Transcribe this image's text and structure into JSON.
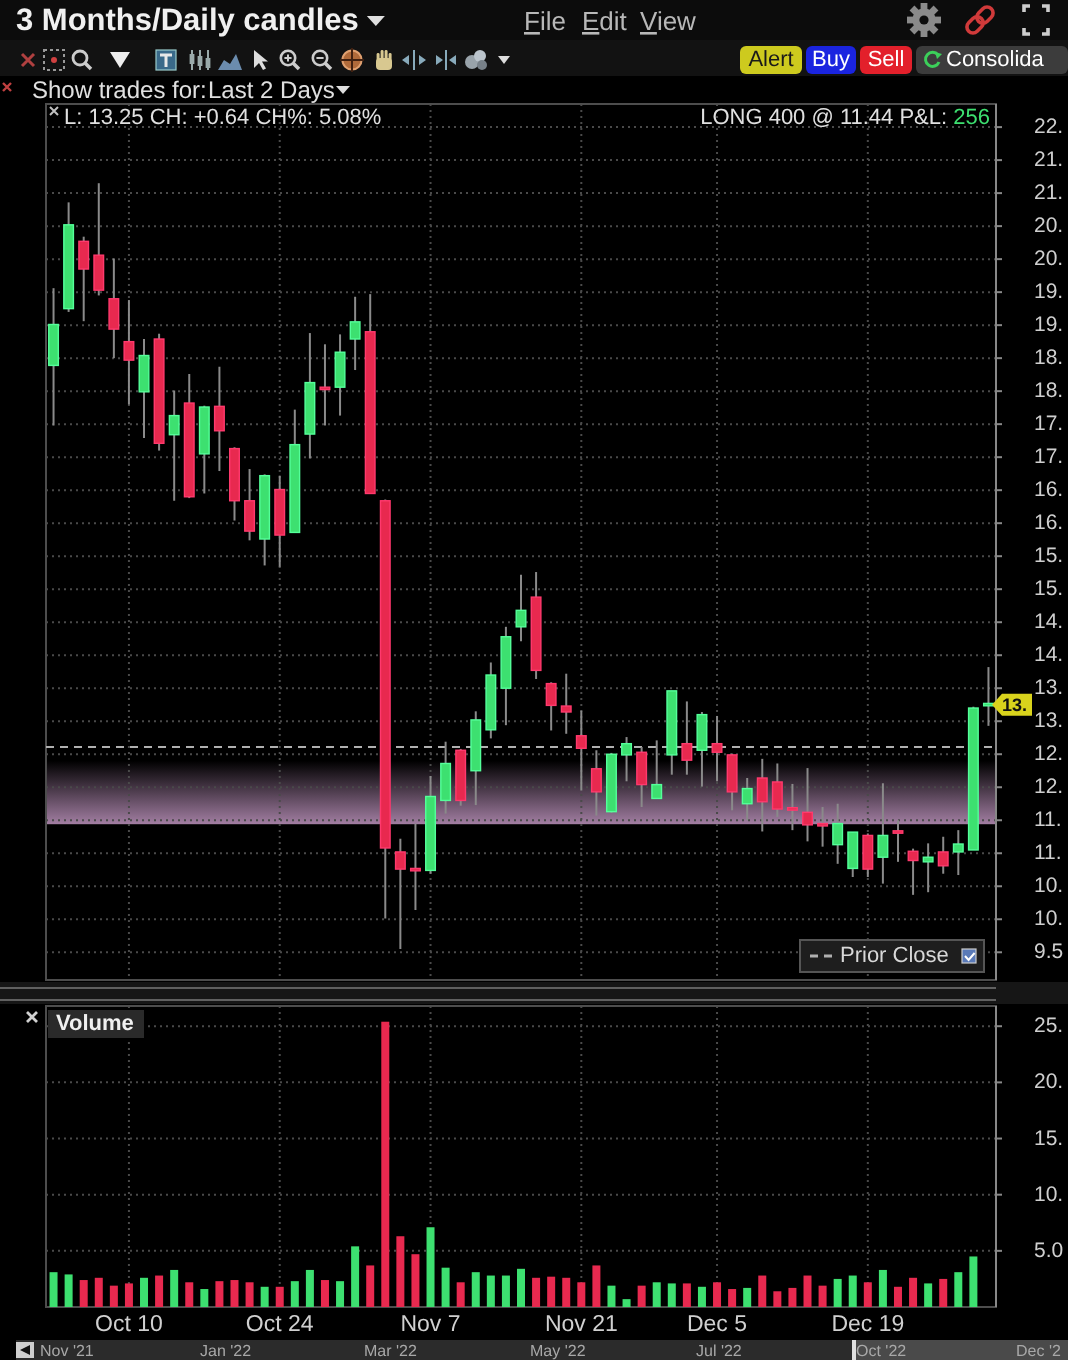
{
  "chart_data": [
    {
      "type": "candlestick",
      "title": "3 Months/Daily candles",
      "categories": [
        null,
        null,
        null,
        null,
        null,
        null,
        null,
        null,
        null,
        null,
        null,
        null,
        null,
        null,
        null,
        null,
        null,
        null,
        null,
        null,
        null,
        null,
        null,
        null,
        null,
        null,
        null,
        null,
        null,
        null,
        null,
        null,
        null,
        null,
        null,
        null,
        null,
        null,
        null,
        null,
        null,
        null,
        null,
        null,
        null,
        null,
        null,
        null,
        null,
        null,
        null,
        null,
        null,
        null,
        null,
        null,
        null,
        null,
        null,
        null,
        null,
        null,
        null
      ],
      "ohlc": [
        [
          18.39,
          19.56,
          17.48,
          19.01
        ],
        [
          19.25,
          20.86,
          19.2,
          20.52
        ],
        [
          20.27,
          20.34,
          19.06,
          19.85
        ],
        [
          20.06,
          21.15,
          19.45,
          19.53
        ],
        [
          19.4,
          20.01,
          18.5,
          18.94
        ],
        [
          18.75,
          19.38,
          17.8,
          18.47
        ],
        [
          17.99,
          18.79,
          17.29,
          18.54
        ],
        [
          18.79,
          18.87,
          17.1,
          17.21
        ],
        [
          17.34,
          18.01,
          16.34,
          17.63
        ],
        [
          17.82,
          18.26,
          16.38,
          16.4
        ],
        [
          17.05,
          17.78,
          16.45,
          17.76
        ],
        [
          17.77,
          18.37,
          16.79,
          17.4
        ],
        [
          17.13,
          17.15,
          16.04,
          16.34
        ],
        [
          16.34,
          16.82,
          15.74,
          15.88
        ],
        [
          15.76,
          16.74,
          15.36,
          16.72
        ],
        [
          16.51,
          16.72,
          15.34,
          15.82
        ],
        [
          15.86,
          17.72,
          15.86,
          17.19
        ],
        [
          17.35,
          18.88,
          16.98,
          18.13
        ],
        [
          18.06,
          18.71,
          17.48,
          18.04
        ],
        [
          18.06,
          18.86,
          17.63,
          18.59
        ],
        [
          18.79,
          19.43,
          18.32,
          19.05
        ],
        [
          18.9,
          19.47,
          16.45,
          16.45
        ],
        [
          16.34,
          16.36,
          10.01,
          11.08
        ],
        [
          11.02,
          11.22,
          9.55,
          10.76
        ],
        [
          10.77,
          11.45,
          10.14,
          10.75
        ],
        [
          10.74,
          12.17,
          10.69,
          11.86
        ],
        [
          11.8,
          12.69,
          11.6,
          12.36
        ],
        [
          12.56,
          12.58,
          11.72,
          11.8
        ],
        [
          12.25,
          13.15,
          11.73,
          13.02
        ],
        [
          12.87,
          13.89,
          12.74,
          13.7
        ],
        [
          13.5,
          14.43,
          12.94,
          14.28
        ],
        [
          14.43,
          15.22,
          14.21,
          14.68
        ],
        [
          14.88,
          15.26,
          13.64,
          13.77
        ],
        [
          13.57,
          13.59,
          12.86,
          13.24
        ],
        [
          13.23,
          13.72,
          12.81,
          13.14
        ],
        [
          12.78,
          13.16,
          11.95,
          12.59
        ],
        [
          12.28,
          12.56,
          11.57,
          11.93
        ],
        [
          11.63,
          12.52,
          11.61,
          12.5
        ],
        [
          12.49,
          12.76,
          12.09,
          12.66
        ],
        [
          12.53,
          12.61,
          11.7,
          12.04
        ],
        [
          11.83,
          12.71,
          11.83,
          12.04
        ],
        [
          12.49,
          13.46,
          12.19,
          13.46
        ],
        [
          12.66,
          13.3,
          12.19,
          12.41
        ],
        [
          12.56,
          13.14,
          12.01,
          13.1
        ],
        [
          12.66,
          13.08,
          12.09,
          12.53
        ],
        [
          12.49,
          12.51,
          11.65,
          11.93
        ],
        [
          11.75,
          12.14,
          11.5,
          11.98
        ],
        [
          12.14,
          12.43,
          11.33,
          11.78
        ],
        [
          12.08,
          12.36,
          11.55,
          11.67
        ],
        [
          11.69,
          12.05,
          11.35,
          11.67
        ],
        [
          11.62,
          12.29,
          11.18,
          11.43
        ],
        [
          11.45,
          11.7,
          11.1,
          11.43
        ],
        [
          11.13,
          11.75,
          10.84,
          11.45
        ],
        [
          10.77,
          11.32,
          10.64,
          11.32
        ],
        [
          11.27,
          11.3,
          10.64,
          10.76
        ],
        [
          10.94,
          12.06,
          10.54,
          11.27
        ],
        [
          11.34,
          11.5,
          10.87,
          11.32
        ],
        [
          11.03,
          11.07,
          10.37,
          10.89
        ],
        [
          10.87,
          11.15,
          10.41,
          10.94
        ],
        [
          11.02,
          11.25,
          10.69,
          10.81
        ],
        [
          11.02,
          11.35,
          10.67,
          11.14
        ],
        [
          11.05,
          13.22,
          11.05,
          13.2
        ],
        [
          13.25,
          13.82,
          12.93,
          13.27
        ]
      ],
      "colors": [
        "#3de070",
        "#3de070",
        "#e8294f",
        "#e8294f",
        "#e8294f",
        "#e8294f",
        "#3de070",
        "#e8294f",
        "#3de070",
        "#e8294f",
        "#3de070",
        "#e8294f",
        "#e8294f",
        "#e8294f",
        "#3de070",
        "#e8294f",
        "#3de070",
        "#3de070",
        "#e8294f",
        "#3de070",
        "#3de070",
        "#e8294f",
        "#e8294f",
        "#e8294f",
        "#e8294f",
        "#3de070",
        "#3de070",
        "#e8294f",
        "#3de070",
        "#3de070",
        "#3de070",
        "#3de070",
        "#e8294f",
        "#e8294f",
        "#e8294f",
        "#e8294f",
        "#e8294f",
        "#3de070",
        "#3de070",
        "#e8294f",
        "#3de070",
        "#3de070",
        "#e8294f",
        "#3de070",
        "#e8294f",
        "#e8294f",
        "#3de070",
        "#e8294f",
        "#e8294f",
        "#e8294f",
        "#e8294f",
        "#e8294f",
        "#3de070",
        "#3de070",
        "#e8294f",
        "#3de070",
        "#e8294f",
        "#e8294f",
        "#3de070",
        "#e8294f",
        "#3de070",
        "#3de070",
        "#3de070"
      ],
      "ylim": [
        9.08,
        22.35
      ],
      "yticks": [
        9.5,
        {
          "value": 10,
          "label": "10."
        },
        {
          "value": 10.5,
          "label": "10."
        },
        {
          "value": 11,
          "label": "11."
        },
        {
          "value": 11.5,
          "label": "11."
        },
        {
          "value": 12,
          "label": "12."
        },
        {
          "value": 12.5,
          "label": "12."
        },
        {
          "value": 13,
          "label": "13."
        },
        {
          "value": 13.5,
          "label": "13."
        },
        {
          "value": 14,
          "label": "14."
        },
        {
          "value": 14.5,
          "label": "14."
        },
        {
          "value": 15,
          "label": "15."
        },
        {
          "value": 15.5,
          "label": "15."
        },
        {
          "value": 16,
          "label": "16."
        },
        {
          "value": 16.5,
          "label": "16."
        },
        {
          "value": 17,
          "label": "17."
        },
        {
          "value": 17.5,
          "label": "17."
        },
        {
          "value": 18,
          "label": "18."
        },
        {
          "value": 18.5,
          "label": "18."
        },
        {
          "value": 19,
          "label": "19."
        },
        {
          "value": 19.5,
          "label": "19."
        },
        {
          "value": 20,
          "label": "20."
        },
        {
          "value": 20.5,
          "label": "20."
        },
        {
          "value": 21,
          "label": "21."
        },
        {
          "value": 21.5,
          "label": "21."
        },
        {
          "value": 22,
          "label": "22."
        }
      ],
      "grid": true,
      "tick_labels": "y",
      "bands": [
        {
          "axis": "y",
          "from": 11.44,
          "to": 12.4,
          "color": "#b48cb4"
        }
      ],
      "ref_lines": [
        {
          "axis": "y",
          "value": 12.61,
          "label": "Prior Close",
          "color": "#b0b0b0",
          "line_style": "dashed"
        }
      ],
      "annotations": [
        "File",
        "Edit",
        "View",
        "Alert",
        "Buy",
        "Sell",
        "Consolida",
        "Show trades for:",
        "Last 2 Days",
        "L: 13.25 CH: +0.64 CH%: 5.08%",
        "LONG 400 @ 11.44 P&L: 256",
        {
          "text": "13.",
          "y": 13.25
        }
      ]
    },
    {
      "type": "bar",
      "title": "Volume",
      "categories": [
        null,
        null,
        null,
        null,
        null,
        "Oct 10",
        null,
        null,
        null,
        null,
        null,
        null,
        null,
        null,
        null,
        "Oct 24",
        null,
        null,
        null,
        null,
        null,
        null,
        null,
        null,
        null,
        "Nov 7",
        null,
        null,
        null,
        null,
        null,
        null,
        null,
        null,
        null,
        "Nov 21",
        null,
        null,
        null,
        null,
        null,
        null,
        null,
        null,
        "Dec 5",
        null,
        null,
        null,
        null,
        null,
        null,
        null,
        null,
        null,
        "Dec 19",
        null,
        null,
        null,
        null,
        null,
        null,
        null,
        null
      ],
      "values": [
        3.1,
        2.9,
        2.4,
        2.6,
        1.9,
        2.1,
        2.6,
        2.8,
        3.3,
        2.2,
        1.6,
        2.3,
        2.4,
        2.2,
        1.8,
        1.8,
        2.3,
        3.3,
        2.4,
        2.3,
        5.4,
        3.7,
        25.4,
        6.3,
        4.7,
        7.1,
        3.5,
        2.2,
        3.1,
        2.8,
        2.8,
        3.4,
        2.6,
        2.7,
        2.6,
        2.2,
        3.7,
        1.9,
        0.7,
        1.9,
        2.2,
        2.1,
        2.1,
        1.8,
        2.2,
        1.6,
        1.7,
        2.8,
        1.4,
        1.7,
        2.8,
        1.9,
        2.5,
        2.8,
        2.2,
        3.3,
        1.8,
        2.6,
        2.1,
        2.5,
        3.1,
        4.5,
        null
      ],
      "colors": [
        "#3de070",
        "#3de070",
        "#e8294f",
        "#e8294f",
        "#e8294f",
        "#e8294f",
        "#3de070",
        "#e8294f",
        "#3de070",
        "#e8294f",
        "#3de070",
        "#e8294f",
        "#e8294f",
        "#e8294f",
        "#3de070",
        "#e8294f",
        "#3de070",
        "#3de070",
        "#e8294f",
        "#3de070",
        "#3de070",
        "#e8294f",
        "#e8294f",
        "#e8294f",
        "#e8294f",
        "#3de070",
        "#3de070",
        "#e8294f",
        "#3de070",
        "#3de070",
        "#3de070",
        "#3de070",
        "#e8294f",
        "#e8294f",
        "#e8294f",
        "#e8294f",
        "#e8294f",
        "#3de070",
        "#3de070",
        "#e8294f",
        "#3de070",
        "#3de070",
        "#e8294f",
        "#3de070",
        "#e8294f",
        "#e8294f",
        "#3de070",
        "#e8294f",
        "#e8294f",
        "#e8294f",
        "#e8294f",
        "#e8294f",
        "#3de070",
        "#3de070",
        "#e8294f",
        "#3de070",
        "#e8294f",
        "#e8294f",
        "#3de070",
        "#e8294f",
        "#3de070",
        "#3de070",
        null
      ],
      "ylim": [
        0,
        26.8
      ],
      "yticks": [
        {
          "value": 5,
          "label": "5.0"
        },
        {
          "value": 10,
          "label": "10."
        },
        {
          "value": 15,
          "label": "15."
        },
        {
          "value": 20,
          "label": "20."
        },
        {
          "value": 25,
          "label": "25."
        }
      ],
      "grid": true,
      "annotations": [
        "Nov '21",
        "Jan '22",
        "Mar '22",
        "May '22",
        "Jul '22",
        "Oct '22",
        "Dec '2"
      ]
    }
  ]
}
